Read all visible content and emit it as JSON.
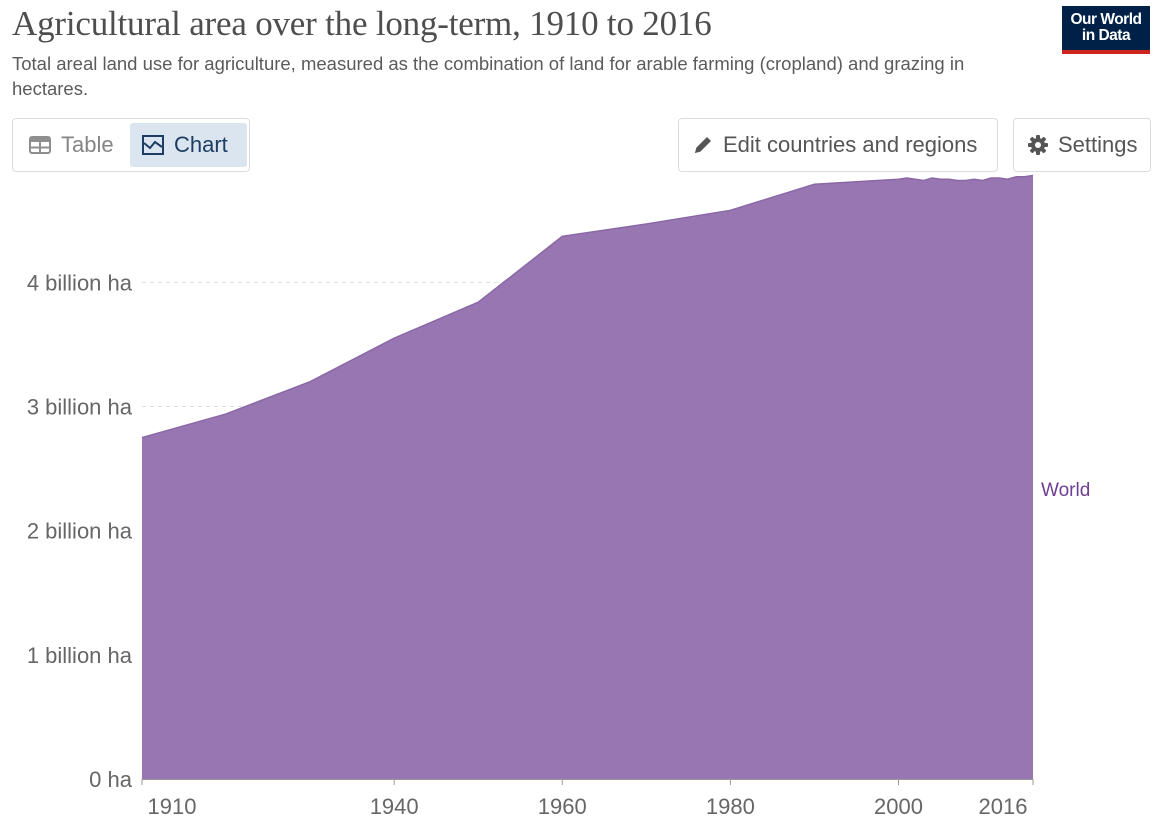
{
  "header": {
    "title": "Agricultural area over the long-term, 1910 to 2016",
    "subtitle": "Total areal land use for agriculture, measured as the combination of land for arable farming (cropland) and grazing in hectares."
  },
  "logo": {
    "line1": "Our World",
    "line2": "in Data",
    "bg_color": "#002147",
    "accent_color": "#ce261e"
  },
  "tabs": [
    {
      "label": "Table",
      "icon": "table-icon",
      "active": false
    },
    {
      "label": "Chart",
      "icon": "chart-icon",
      "active": true
    }
  ],
  "buttons": {
    "edit": {
      "label": "Edit countries and regions",
      "icon": "pencil-icon"
    },
    "settings": {
      "label": "Settings",
      "icon": "gear-icon"
    }
  },
  "chart_data": {
    "type": "area",
    "title": "Agricultural area over the long-term, 1910 to 2016",
    "xlabel": "",
    "ylabel": "",
    "xlim": [
      1910,
      2016
    ],
    "ylim": [
      0,
      4.8
    ],
    "y_unit": "billion ha",
    "x_ticks": [
      "1910",
      "1940",
      "1960",
      "1980",
      "2000",
      "2016"
    ],
    "y_ticks": [
      "0 ha",
      "1 billion ha",
      "2 billion ha",
      "3 billion ha",
      "4 billion ha"
    ],
    "grid": "horizontal-dashed",
    "legend": "right-inline",
    "fill_color": "#9876b2",
    "line_color": "#8a68a6",
    "label_color": "#6d3e91",
    "series": [
      {
        "name": "World",
        "x": [
          1910,
          1920,
          1930,
          1940,
          1950,
          1960,
          1970,
          1980,
          1990,
          2000,
          2001,
          2002,
          2003,
          2004,
          2005,
          2006,
          2007,
          2008,
          2009,
          2010,
          2011,
          2012,
          2013,
          2014,
          2015,
          2016
        ],
        "values": [
          2.75,
          2.94,
          3.2,
          3.55,
          3.84,
          4.37,
          4.47,
          4.58,
          4.79,
          4.83,
          4.84,
          4.83,
          4.82,
          4.84,
          4.83,
          4.83,
          4.82,
          4.82,
          4.83,
          4.82,
          4.84,
          4.84,
          4.83,
          4.85,
          4.85,
          4.86
        ]
      }
    ]
  }
}
